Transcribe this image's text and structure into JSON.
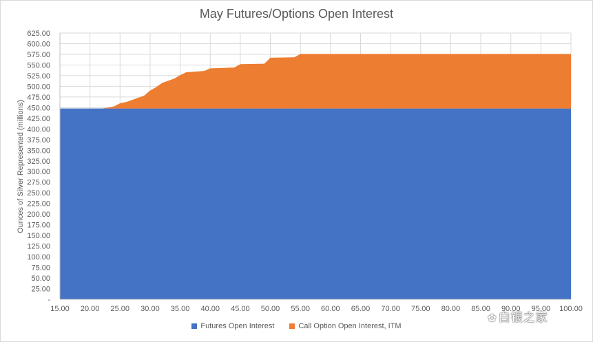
{
  "chart_data": {
    "type": "area",
    "title": "May Futures/Options Open Interest",
    "xlabel": "",
    "ylabel": "Ounces of Silver Represented  (millions)",
    "xlim": [
      15,
      100
    ],
    "ylim": [
      0,
      625
    ],
    "stacked": true,
    "grid": true,
    "legend_position": "bottom",
    "x_ticks": [
      "15.00",
      "20.00",
      "25.00",
      "30.00",
      "35.00",
      "40.00",
      "45.00",
      "50.00",
      "55.00",
      "60.00",
      "65.00",
      "70.00",
      "75.00",
      "80.00",
      "85.00",
      "90.00",
      "95.00",
      "100.00"
    ],
    "y_ticks": [
      "-",
      "25.00",
      "50.00",
      "75.00",
      "100.00",
      "125.00",
      "150.00",
      "175.00",
      "200.00",
      "225.00",
      "250.00",
      "275.00",
      "300.00",
      "325.00",
      "350.00",
      "375.00",
      "400.00",
      "425.00",
      "450.00",
      "475.00",
      "500.00",
      "525.00",
      "550.00",
      "575.00",
      "600.00",
      "625.00"
    ],
    "series": [
      {
        "name": "Futures Open Interest",
        "color": "#4472C4",
        "x": [
          15,
          100
        ],
        "values": [
          448,
          448
        ]
      },
      {
        "name": "Call Option Open Interest, ITM",
        "color": "#ED7D31",
        "x": [
          15,
          22,
          23,
          24,
          25,
          26,
          27,
          28,
          29,
          30,
          31,
          32,
          33,
          34,
          35,
          36,
          37,
          38,
          39,
          40,
          44,
          45,
          49,
          50,
          54,
          55,
          100
        ],
        "values": [
          0,
          0,
          2,
          5,
          12,
          15,
          20,
          25,
          30,
          42,
          50,
          60,
          65,
          70,
          78,
          85,
          86,
          87,
          88,
          94,
          96,
          104,
          105,
          119,
          120,
          128,
          128
        ]
      }
    ]
  },
  "watermark_text": "白银之家",
  "watermark_icon": "wechat-icon"
}
